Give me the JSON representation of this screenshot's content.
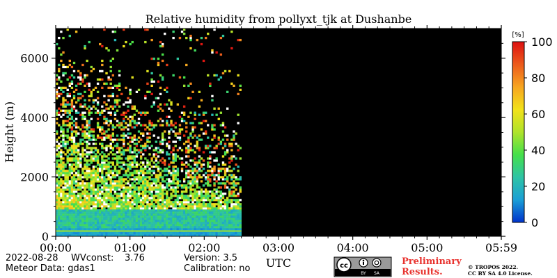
{
  "chart_data": {
    "type": "heatmap",
    "title": "Relative humidity from pollyxt_tjk at Dushanbe",
    "xlabel": "UTC",
    "ylabel": "Height (m)",
    "x_tick_labels": [
      "00:00",
      "01:00",
      "02:00",
      "03:00",
      "04:00",
      "05:00",
      "05:59"
    ],
    "xlim_hours": [
      0,
      6
    ],
    "ylim": [
      0,
      7000
    ],
    "y_ticks": [
      0,
      2000,
      4000,
      6000
    ],
    "colorbar": {
      "unit": "[%]",
      "range": [
        0,
        100
      ],
      "ticks": [
        0,
        20,
        40,
        60,
        80,
        100
      ],
      "colormap": [
        "#0033cc",
        "#1a9fd6",
        "#2ec4a5",
        "#45e04a",
        "#b0e32b",
        "#f2e21a",
        "#f7a520",
        "#ec5a1c",
        "#dd1010"
      ]
    },
    "data_end_hours": 2.5,
    "no_data_color": "#000000",
    "profile": [
      {
        "height_range": [
          0,
          250
        ],
        "rh": 12
      },
      {
        "height_range": [
          250,
          800
        ],
        "rh": 25
      },
      {
        "height_range": [
          800,
          2000
        ],
        "rh": 45
      },
      {
        "height_range": [
          2000,
          3500
        ],
        "rh": 60
      },
      {
        "height_range": [
          3500,
          7000
        ],
        "rh": 40
      }
    ]
  },
  "footer": {
    "date": "2022-08-28",
    "wvconst_label": "WVconst:",
    "wvconst_value": "3.76",
    "meteor": "Meteor Data: gdas1",
    "version": "Version: 3.5",
    "calibration": "Calibration: no",
    "license_by": "BY",
    "license_sa": "SA",
    "preliminary_1": "Preliminary",
    "preliminary_2": "Results.",
    "copyright_1": "© TROPOS 2022.",
    "copyright_2": "CC BY SA 4.0 License."
  }
}
